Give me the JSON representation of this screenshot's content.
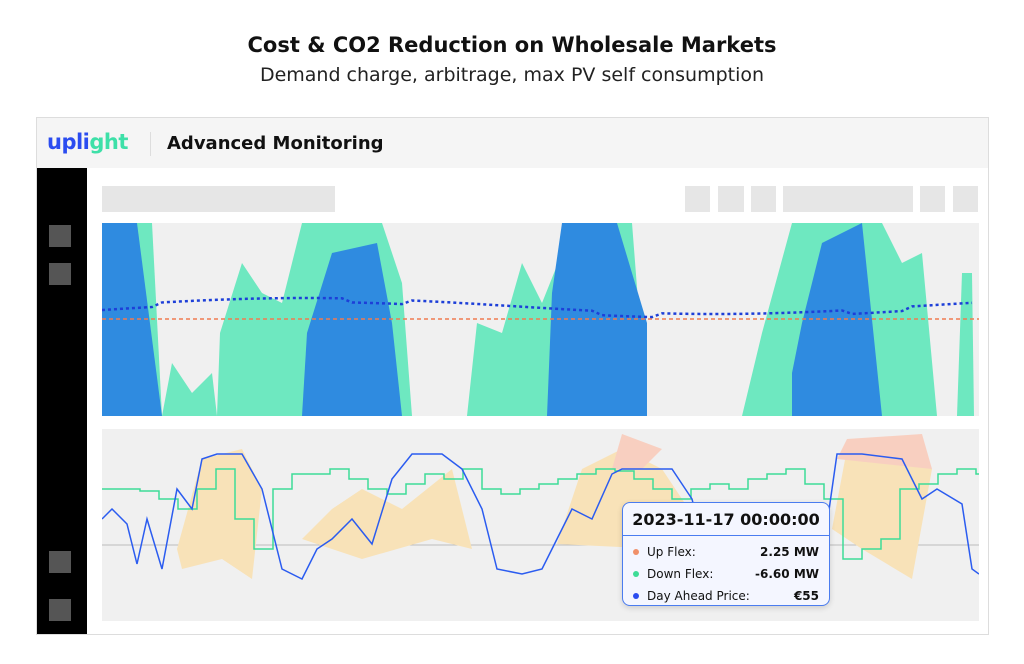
{
  "page": {
    "title": "Cost & CO2 Reduction on Wholesale Markets",
    "subtitle": "Demand charge, arbitrage, max PV self consumption"
  },
  "app": {
    "logo_a": "upli",
    "logo_b": "ght",
    "title": "Advanced Monitoring"
  },
  "colors": {
    "blue": "#2f8be0",
    "green": "#6ee8c0",
    "orange": "#f07a50",
    "darkblue": "#1d3fd8",
    "beige": "#f8e2b8",
    "step": "#3ddc97",
    "line": "#2b5cf0"
  },
  "tooltip": {
    "date": "2023-11-17 00:00:00",
    "rows": [
      {
        "label": "Up Flex:",
        "value": "2.25 MW",
        "color": "#f0906a"
      },
      {
        "label": "Down Flex:",
        "value": "-6.60 MW",
        "color": "#3ddc97"
      },
      {
        "label": "Day Ahead Price:",
        "value": "€55",
        "color": "#2b4cf0"
      }
    ]
  }
}
